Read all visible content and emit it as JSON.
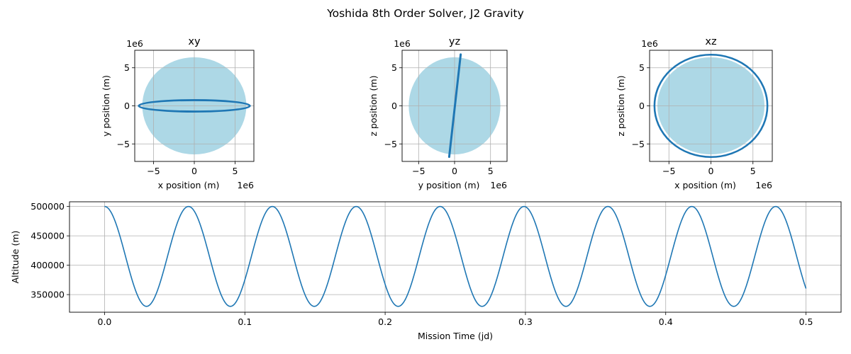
{
  "figure": {
    "suptitle": "Yoshida 8th Order Solver, J2 Gravity"
  },
  "colors": {
    "line": "#1f77b4",
    "earth": "#add8e6",
    "grid": "#b0b0b0",
    "axes": "#000000"
  },
  "chart_data": [
    {
      "type": "line",
      "title": "xy",
      "xlabel": "x position (m)",
      "ylabel": "y position (m)",
      "x_offset_label": "1e6",
      "y_offset_label": "1e6",
      "xlim": [
        -7.3,
        7.3
      ],
      "ylim": [
        -7.3,
        7.3
      ],
      "xticks": [
        -5,
        0,
        5
      ],
      "yticks": [
        -5,
        0,
        5
      ],
      "grid": true,
      "earth_radius": 6.378,
      "series": [
        {
          "kind": "ellipse",
          "x_amplitude": 6.8,
          "y_amplitude": 0.75,
          "width_spread": 0.08
        }
      ]
    },
    {
      "type": "line",
      "title": "yz",
      "xlabel": "y position (m)",
      "ylabel": "z position (m)",
      "x_offset_label": "1e6",
      "y_offset_label": "1e6",
      "xlim": [
        -7.3,
        7.3
      ],
      "ylim": [
        -7.3,
        7.3
      ],
      "xticks": [
        -5,
        0,
        5
      ],
      "yticks": [
        -5,
        0,
        5
      ],
      "grid": true,
      "earth_radius": 6.378,
      "series": [
        {
          "kind": "segment",
          "from": [
            -0.75,
            -6.7
          ],
          "to": [
            0.85,
            6.75
          ]
        }
      ]
    },
    {
      "type": "line",
      "title": "xz",
      "xlabel": "x position (m)",
      "ylabel": "z position (m)",
      "x_offset_label": "1e6",
      "y_offset_label": "1e6",
      "xlim": [
        -7.3,
        7.3
      ],
      "ylim": [
        -7.3,
        7.3
      ],
      "xticks": [
        -5,
        0,
        5
      ],
      "yticks": [
        -5,
        0,
        5
      ],
      "grid": true,
      "earth_radius": 6.378,
      "series": [
        {
          "kind": "ring",
          "radius": 6.72,
          "width_spread": 0.1
        }
      ]
    },
    {
      "type": "line",
      "title": "",
      "xlabel": "Mission Time (jd)",
      "ylabel": "Altitude (m)",
      "xlim": [
        -0.025,
        0.525
      ],
      "ylim": [
        320000,
        508000
      ],
      "xticks": [
        0.0,
        0.1,
        0.2,
        0.3,
        0.4,
        0.5
      ],
      "xtick_labels": [
        "0.0",
        "0.1",
        "0.2",
        "0.3",
        "0.4",
        "0.5"
      ],
      "yticks": [
        350000,
        400000,
        450000,
        500000
      ],
      "ytick_labels": [
        "350000",
        "400000",
        "450000",
        "500000"
      ],
      "grid": true,
      "series": [
        {
          "kind": "cosine",
          "x_start": 0,
          "x_end": 0.5,
          "period": 0.0598,
          "max": 500000,
          "min": 330000
        }
      ]
    }
  ]
}
